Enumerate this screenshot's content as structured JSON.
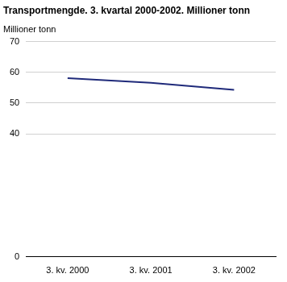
{
  "chart_data": {
    "type": "line",
    "title": "Transportmengde. 3. kvartal 2000-2002. Millioner tonn",
    "y_label": "Millioner tonn",
    "categories": [
      "3. kv. 2000",
      "3. kv. 2001",
      "3. kv. 2002"
    ],
    "values": [
      58.1,
      56.6,
      54.3
    ],
    "color": "#1f2a7a",
    "ylim": [
      0,
      70
    ],
    "yticks": [
      0,
      40,
      50,
      60,
      70
    ],
    "grid": true
  }
}
